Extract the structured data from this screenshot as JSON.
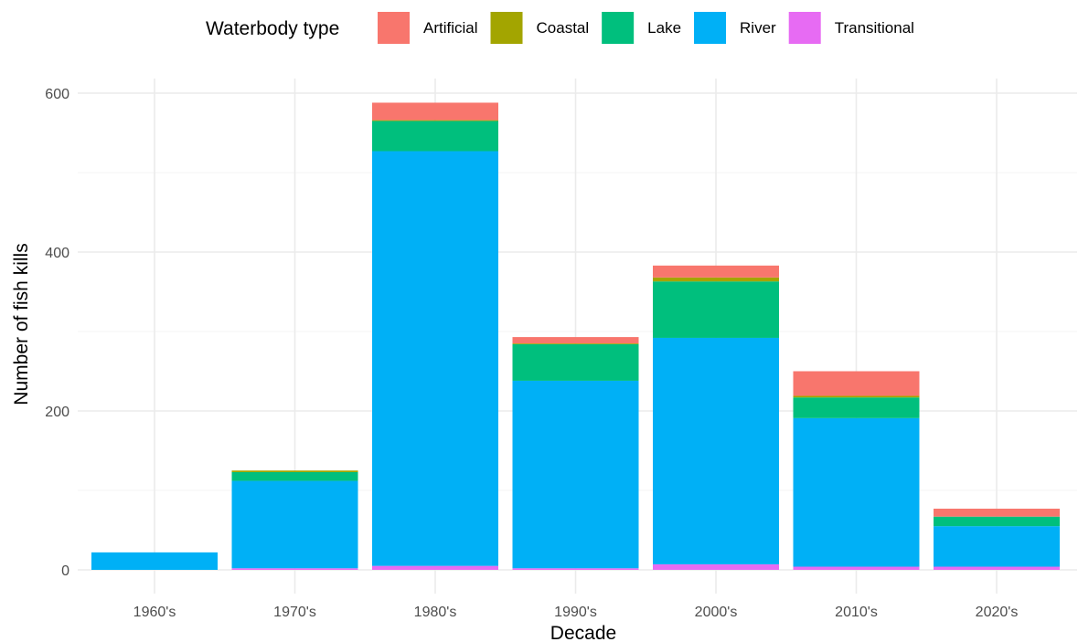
{
  "chart_data": {
    "type": "bar",
    "stacked": true,
    "categories": [
      "1960's",
      "1970's",
      "1980's",
      "1990's",
      "2000's",
      "2010's",
      "2020's"
    ],
    "series": [
      {
        "name": "Transitional",
        "color": "#E76BF3",
        "values": [
          0,
          2,
          5,
          2,
          7,
          4,
          4
        ]
      },
      {
        "name": "River",
        "color": "#00B0F6",
        "values": [
          22,
          110,
          522,
          236,
          285,
          187,
          51
        ]
      },
      {
        "name": "Lake",
        "color": "#00BF7D",
        "values": [
          0,
          11,
          38,
          46,
          71,
          26,
          12
        ]
      },
      {
        "name": "Coastal",
        "color": "#A3A500",
        "values": [
          0,
          2,
          1,
          1,
          5,
          2,
          0
        ]
      },
      {
        "name": "Artificial",
        "color": "#F8766D",
        "values": [
          0,
          0,
          22,
          8,
          15,
          31,
          10
        ]
      }
    ],
    "legend_title": "Waterbody type",
    "legend_order": [
      "Artificial",
      "Coastal",
      "Lake",
      "River",
      "Transitional"
    ],
    "legend_position": "top",
    "xlabel": "Decade",
    "ylabel": "Number of fish kills",
    "ylim": [
      0,
      620
    ],
    "yticks": [
      0,
      200,
      400,
      600
    ],
    "grid": true
  }
}
